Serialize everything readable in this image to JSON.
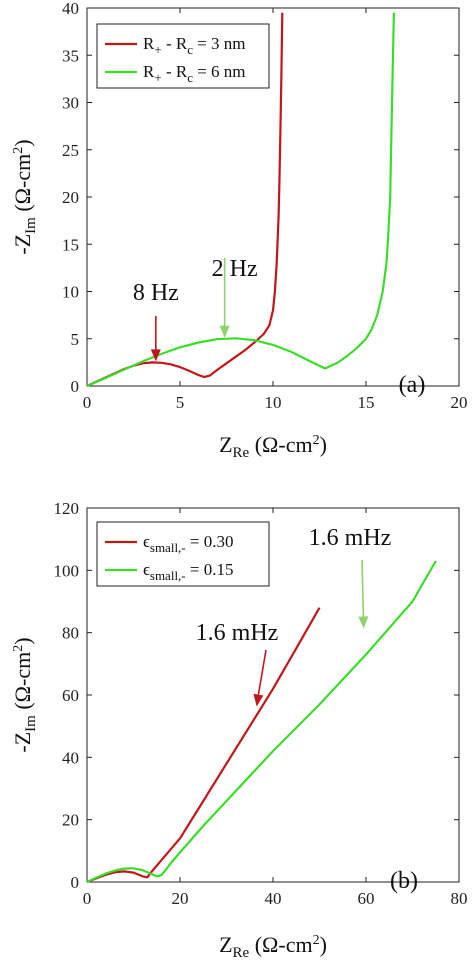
{
  "chart_data": [
    {
      "type": "line",
      "panel_label": "(a)",
      "xlabel_main": "Z",
      "xlabel_sub": "Re",
      "xlabel_unit": "(Ω-cm",
      "xlabel_sup": "2",
      "xlabel_close": ")",
      "ylabel_prefix": "-Z",
      "ylabel_sub": "Im",
      "ylabel_unit": "(Ω-cm",
      "ylabel_sup": "2",
      "ylabel_close": ")",
      "xlim": [
        0,
        20
      ],
      "ylim": [
        0,
        40
      ],
      "xticks": [
        "0",
        "5",
        "10",
        "15",
        "20"
      ],
      "yticks": [
        "0",
        "5",
        "10",
        "15",
        "20",
        "25",
        "30",
        "35",
        "40"
      ],
      "legend_position": "top-left",
      "series": [
        {
          "legend_main": "R",
          "legend_sub1": "+",
          "legend_mid": " - R",
          "legend_sub2": "c",
          "legend_end": " = 3 nm",
          "color": "#c0171c",
          "x": [
            0,
            0.5,
            1,
            1.5,
            2,
            2.5,
            3,
            3.5,
            4,
            4.5,
            5,
            5.5,
            6,
            6.3,
            6.6,
            7,
            7.5,
            8,
            8.5,
            9,
            9.5,
            9.8,
            10,
            10.1,
            10.2,
            10.3,
            10.35,
            10.4,
            10.45,
            10.5
          ],
          "y": [
            0,
            0.45,
            0.9,
            1.35,
            1.8,
            2.15,
            2.4,
            2.5,
            2.45,
            2.3,
            2.0,
            1.6,
            1.15,
            0.95,
            1.1,
            1.7,
            2.4,
            3.1,
            3.8,
            4.6,
            5.5,
            6.4,
            8.0,
            10.0,
            13.0,
            18.0,
            22.0,
            27.0,
            33.0,
            39.5
          ]
        },
        {
          "legend_main": "R",
          "legend_sub1": "+",
          "legend_mid": " - R",
          "legend_sub2": "c",
          "legend_end": " = 6 nm",
          "color": "#3bdc2a",
          "x": [
            0,
            1,
            2,
            3,
            4,
            5,
            6,
            7,
            8,
            9,
            10,
            11,
            12,
            12.8,
            13.5,
            14,
            14.5,
            15,
            15.3,
            15.6,
            15.9,
            16.1,
            16.2,
            16.3,
            16.35,
            16.4,
            16.45,
            16.5
          ],
          "y": [
            0,
            0.85,
            1.75,
            2.6,
            3.4,
            4.1,
            4.6,
            4.95,
            5.05,
            4.85,
            4.35,
            3.6,
            2.6,
            1.85,
            2.5,
            3.2,
            4.0,
            5.0,
            6.0,
            7.5,
            10.0,
            13.0,
            16.0,
            20.0,
            25.0,
            30.0,
            35.0,
            39.5
          ]
        }
      ],
      "annotations": [
        {
          "text": "8 Hz",
          "x": 3.7,
          "y": 2.5,
          "color": "#c0171c"
        },
        {
          "text": "2 Hz",
          "x": 7.4,
          "y": 5.0,
          "color": "#8fd36e"
        }
      ]
    },
    {
      "type": "line",
      "panel_label": "(b)",
      "xlabel_main": "Z",
      "xlabel_sub": "Re",
      "xlabel_unit": "(Ω-cm",
      "xlabel_sup": "2",
      "xlabel_close": ")",
      "ylabel_prefix": "-Z",
      "ylabel_sub": "Im",
      "ylabel_unit": "(Ω-cm",
      "ylabel_sup": "2",
      "ylabel_close": ")",
      "xlim": [
        0,
        80
      ],
      "ylim": [
        0,
        120
      ],
      "xticks": [
        "0",
        "20",
        "40",
        "60",
        "80"
      ],
      "yticks": [
        "0",
        "20",
        "40",
        "60",
        "80",
        "100",
        "120"
      ],
      "legend_position": "top-left",
      "series": [
        {
          "legend_main": "ϵ",
          "legend_sub1": "small,-",
          "legend_end": " = 0.30",
          "color": "#c0171c",
          "x": [
            0,
            2,
            4,
            6,
            8,
            10,
            12,
            13,
            14,
            16,
            18,
            20,
            25,
            30,
            35,
            40,
            45,
            50
          ],
          "y": [
            0,
            1.2,
            2.3,
            3.1,
            3.4,
            3.0,
            1.8,
            1.5,
            3.5,
            7.0,
            10.5,
            14.0,
            26.0,
            38.0,
            50.0,
            62.0,
            75.0,
            88.0
          ]
        },
        {
          "legend_main": "ϵ",
          "legend_sub1": "small,-",
          "legend_end": " = 0.15",
          "color": "#3bdc2a",
          "x": [
            0,
            2,
            4,
            6,
            8,
            10,
            12,
            14,
            15,
            16,
            17,
            18,
            20,
            25,
            30,
            40,
            50,
            60,
            70,
            75
          ],
          "y": [
            0,
            1.4,
            2.7,
            3.7,
            4.3,
            4.4,
            3.8,
            2.5,
            1.8,
            2.2,
            4.0,
            6.0,
            9.5,
            18.0,
            26.0,
            42.0,
            57.0,
            73.0,
            90.0,
            103.0
          ]
        }
      ],
      "annotations": [
        {
          "text": "1.6 mHz",
          "x": 36.5,
          "y": 56.0,
          "color": "#c0171c"
        },
        {
          "text": "1.6 mHz",
          "x": 59.5,
          "y": 81.0,
          "color": "#8fd36e"
        }
      ]
    }
  ]
}
